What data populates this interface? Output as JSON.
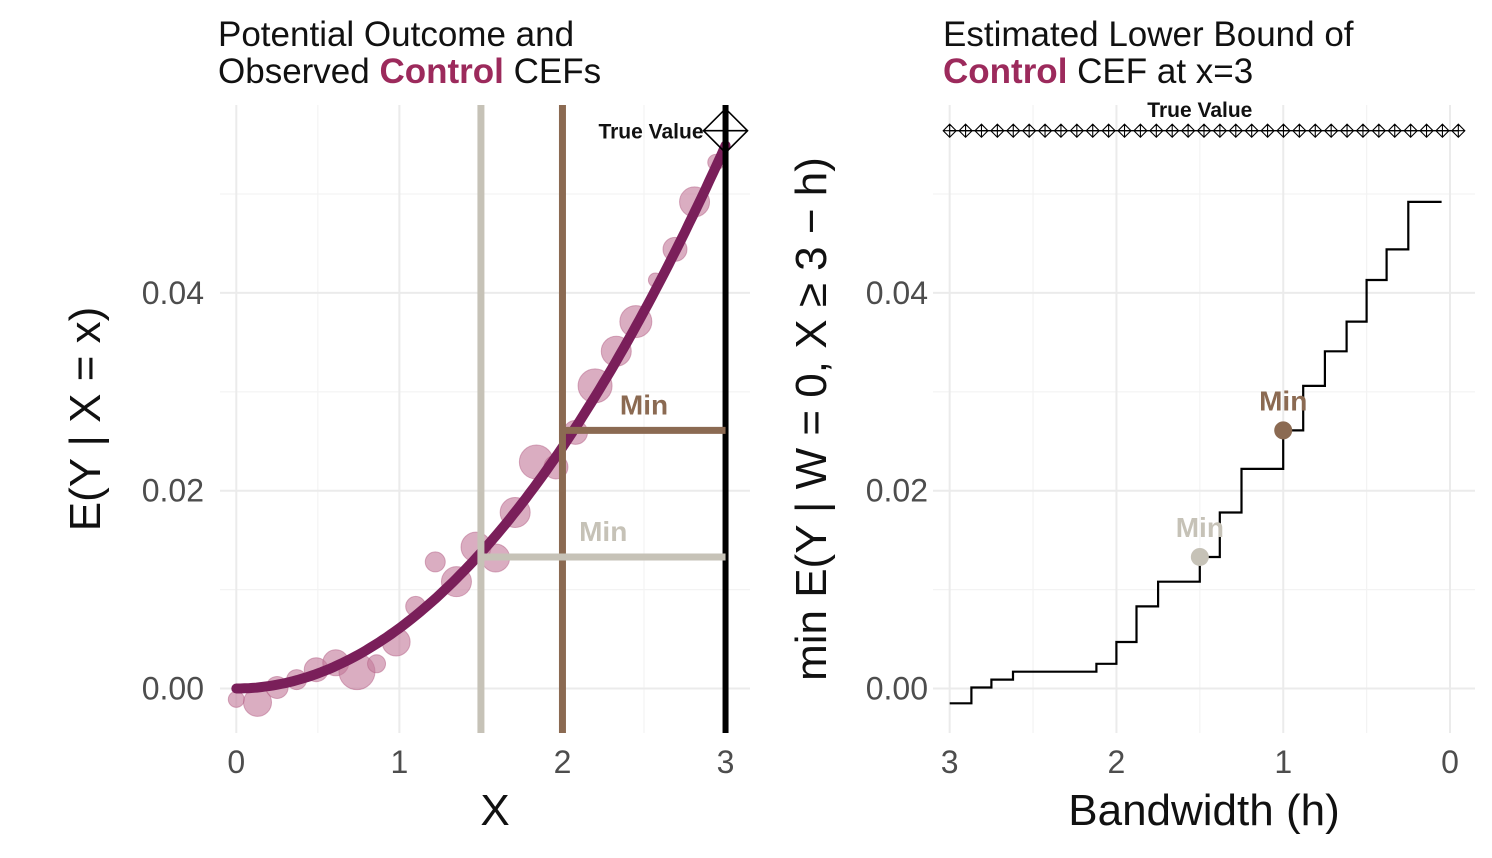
{
  "titles": {
    "left": {
      "pre": "Potential Outcome and",
      "line2_pre": "Observed ",
      "highlight": "Control",
      "post": " CEFs"
    },
    "right": {
      "pre": "Estimated Lower Bound of",
      "highlight": "Control",
      "post": " CEF at x=3"
    }
  },
  "colors": {
    "accent": "#9c2a5c",
    "curve": "#7a1f5a",
    "points": "#c47a9b",
    "brown": "#8b6a52",
    "beige": "#c6c2b7",
    "black": "#000000",
    "grid": "#ebebeb",
    "tick": "#4d4d4d"
  },
  "chart_data": [
    {
      "type": "scatter",
      "title": "Potential Outcome and Observed Control CEFs",
      "xlabel": "X",
      "ylabel": "E(Y | X = x)",
      "xlim": [
        -0.1,
        3.15
      ],
      "ylim": [
        -0.0045,
        0.059
      ],
      "xticks": [
        0,
        1,
        2,
        3
      ],
      "yticks": [
        0.0,
        0.02,
        0.04
      ],
      "ytick_labels": [
        "0.00",
        "0.02",
        "0.04"
      ],
      "grid": true,
      "curve": {
        "formula": "0.0061 * x^2",
        "x": [
          0,
          0.25,
          0.5,
          0.75,
          1.0,
          1.25,
          1.5,
          1.75,
          2.0,
          2.25,
          2.5,
          2.75,
          3.0
        ],
        "y": [
          0.0,
          0.0004,
          0.0015,
          0.0034,
          0.0061,
          0.0095,
          0.0137,
          0.0187,
          0.0244,
          0.0309,
          0.0381,
          0.0461,
          0.0549
        ]
      },
      "points": {
        "x": [
          0.0,
          0.13,
          0.25,
          0.37,
          0.49,
          0.61,
          0.74,
          0.86,
          0.98,
          1.1,
          1.22,
          1.35,
          1.47,
          1.59,
          1.71,
          1.84,
          1.96,
          2.08,
          2.2,
          2.33,
          2.45,
          2.57,
          2.69,
          2.81,
          2.94
        ],
        "y": [
          -0.0011,
          -0.0014,
          0.0001,
          0.0009,
          0.0019,
          0.0026,
          0.0017,
          0.0025,
          0.0047,
          0.0083,
          0.0128,
          0.0108,
          0.0143,
          0.0132,
          0.0178,
          0.0229,
          0.0224,
          0.0259,
          0.0306,
          0.0341,
          0.0371,
          0.0413,
          0.0444,
          0.0492,
          0.0532
        ],
        "size": [
          8,
          14,
          11,
          10,
          12,
          13,
          18,
          9,
          14,
          10,
          10,
          15,
          15,
          14,
          15,
          17,
          12,
          12,
          17,
          15,
          16,
          7,
          12,
          15,
          8
        ]
      },
      "vlines": [
        {
          "x": 1.5,
          "color": "#c6c2b7"
        },
        {
          "x": 2.0,
          "color": "#8b6a52"
        },
        {
          "x": 3.0,
          "color": "#000000"
        }
      ],
      "hsegments": [
        {
          "x": [
            1.5,
            3.0
          ],
          "y": 0.0133,
          "color": "#c6c2b7",
          "label": "Min",
          "label_x": 2.25,
          "label_y": 0.0149
        },
        {
          "x": [
            2.0,
            3.0
          ],
          "y": 0.0261,
          "color": "#8b6a52",
          "label": "Min",
          "label_x": 2.5,
          "label_y": 0.0277
        }
      ],
      "true_value": {
        "x": 3.0,
        "y": 0.0564,
        "label": "True Value"
      }
    },
    {
      "type": "line",
      "title": "Estimated Lower Bound of Control CEF at x=3",
      "xlabel": "Bandwidth (h)",
      "ylabel": "min E(Y | W = 0, X ≥ 3 − h)",
      "xlim": [
        3.1,
        -0.15
      ],
      "ylim": [
        -0.0045,
        0.059
      ],
      "xticks": [
        3,
        2,
        1,
        0
      ],
      "yticks": [
        0.0,
        0.02,
        0.04
      ],
      "ytick_labels": [
        "0.00",
        "0.02",
        "0.04"
      ],
      "grid": true,
      "step": {
        "x": [
          3.0,
          2.87,
          2.87,
          2.75,
          2.75,
          2.62,
          2.62,
          2.5,
          2.5,
          2.12,
          2.12,
          2.0,
          2.0,
          1.88,
          1.88,
          1.75,
          1.75,
          1.5,
          1.5,
          1.38,
          1.38,
          1.25,
          1.25,
          1.0,
          1.0,
          0.88,
          0.88,
          0.75,
          0.75,
          0.62,
          0.62,
          0.5,
          0.5,
          0.38,
          0.38,
          0.25,
          0.25,
          0.05
        ],
        "y": [
          -0.0015,
          -0.0015,
          0.0001,
          0.0001,
          0.0009,
          0.0009,
          0.0017,
          0.0017,
          0.0017,
          0.0017,
          0.0025,
          0.0025,
          0.0047,
          0.0047,
          0.0083,
          0.0083,
          0.0108,
          0.0108,
          0.0133,
          0.0133,
          0.0178,
          0.0178,
          0.0222,
          0.0222,
          0.0261,
          0.0261,
          0.0306,
          0.0306,
          0.0341,
          0.0341,
          0.0371,
          0.0371,
          0.0413,
          0.0413,
          0.0444,
          0.0444,
          0.0492,
          0.0492
        ]
      },
      "true_value_line": {
        "y": 0.0564,
        "x_start": 3.0,
        "x_end": -0.05,
        "n_markers": 33,
        "label": "True Value",
        "label_x": 1.5,
        "label_y": 0.0578
      },
      "markers": [
        {
          "x": 1.5,
          "y": 0.0133,
          "color": "#c6c2b7",
          "label": "Min",
          "label_y": 0.0153
        },
        {
          "x": 1.0,
          "y": 0.0261,
          "color": "#8b6a52",
          "label": "Min",
          "label_y": 0.0281
        }
      ]
    }
  ]
}
